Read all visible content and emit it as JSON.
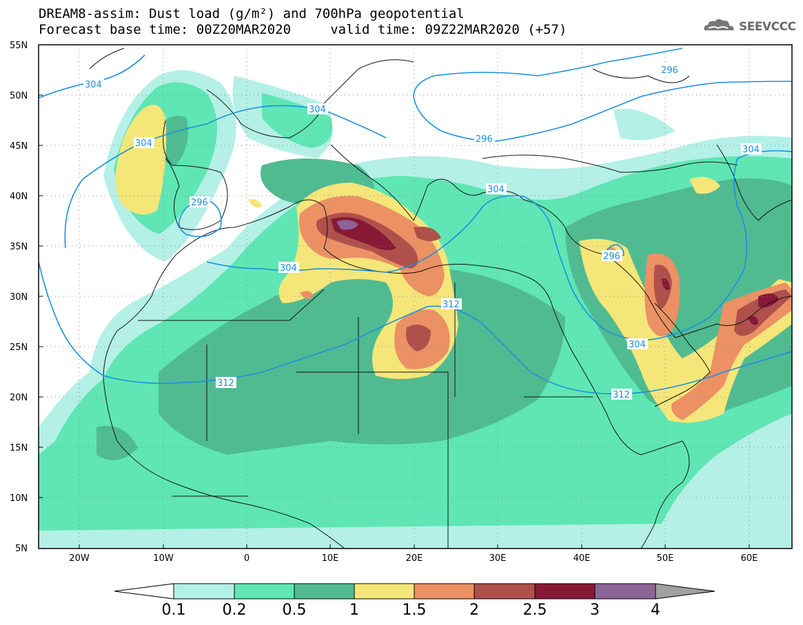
{
  "title": {
    "line1": "DREAM8-assim: Dust load (g/m²) and 700hPa geopotential",
    "line2": "Forecast base time: 00Z20MAR2020     valid time: 09Z22MAR2020 (+57)"
  },
  "logo": {
    "text": "SEEVCCC",
    "icon": "cloud-icon"
  },
  "map": {
    "lon_range": [
      -25,
      65
    ],
    "lat_range": [
      5,
      55
    ],
    "lat_labels": [
      "55N",
      "50N",
      "45N",
      "40N",
      "35N",
      "30N",
      "25N",
      "20N",
      "15N",
      "10N",
      "5N"
    ],
    "lon_labels": [
      "20W",
      "10W",
      "0",
      "10E",
      "20E",
      "30E",
      "40E",
      "50E",
      "60E"
    ],
    "grid": "dotted",
    "contour_labels": [
      "304",
      "304",
      "304",
      "296",
      "304",
      "296",
      "304",
      "312",
      "312",
      "312",
      "304",
      "296",
      "304",
      "296",
      "304"
    ]
  },
  "colorbar": {
    "levels": [
      "0.1",
      "0.2",
      "0.5",
      "1",
      "1.5",
      "2",
      "2.5",
      "3",
      "4"
    ],
    "colors": [
      "#ffffff",
      "#b4f0e6",
      "#5fe6b4",
      "#50bb91",
      "#f5e67a",
      "#eb9164",
      "#af504b",
      "#871937",
      "#8c6496",
      "#a0a0a0"
    ]
  }
}
